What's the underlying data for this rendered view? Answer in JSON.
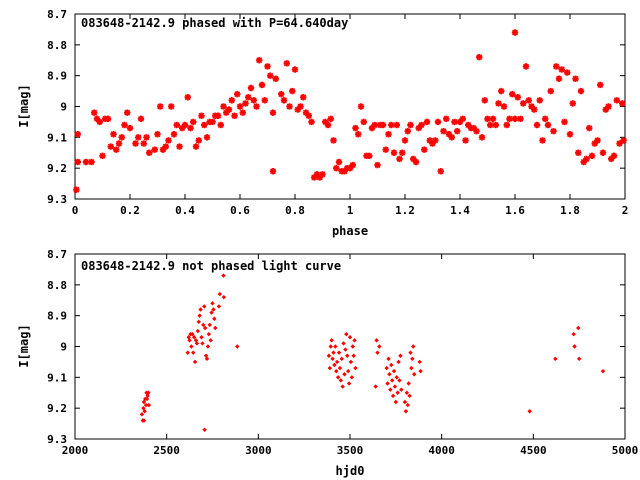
{
  "chart_data": [
    {
      "type": "scatter",
      "title": "083648-2142.9 phased with P=64.640day",
      "xlabel": "phase",
      "ylabel": "I[mag]",
      "xlim": [
        0,
        2
      ],
      "ylim": [
        8.7,
        9.3
      ],
      "y_inverted": true,
      "x_ticks": [
        "0",
        "0.2",
        "0.4",
        "0.6",
        "0.8",
        "1",
        "1.2",
        "1.4",
        "1.6",
        "1.8",
        "2"
      ],
      "y_ticks": [
        "8.7",
        "8.8",
        "8.9",
        "9",
        "9.1",
        "9.2",
        "9.3"
      ],
      "marker": "star",
      "color": "#ff0000",
      "points": [
        [
          0.005,
          9.27
        ],
        [
          0.01,
          9.18
        ],
        [
          0.01,
          9.09
        ],
        [
          0.04,
          9.18
        ],
        [
          0.06,
          9.18
        ],
        [
          0.07,
          9.02
        ],
        [
          0.08,
          9.04
        ],
        [
          0.09,
          9.05
        ],
        [
          0.1,
          9.16
        ],
        [
          0.11,
          9.04
        ],
        [
          0.12,
          9.04
        ],
        [
          0.13,
          9.13
        ],
        [
          0.14,
          9.09
        ],
        [
          0.15,
          9.14
        ],
        [
          0.16,
          9.12
        ],
        [
          0.17,
          9.1
        ],
        [
          0.18,
          9.06
        ],
        [
          0.19,
          9.02
        ],
        [
          0.2,
          9.07
        ],
        [
          0.22,
          9.12
        ],
        [
          0.23,
          9.1
        ],
        [
          0.24,
          9.04
        ],
        [
          0.25,
          9.12
        ],
        [
          0.26,
          9.1
        ],
        [
          0.27,
          9.15
        ],
        [
          0.29,
          9.14
        ],
        [
          0.3,
          9.09
        ],
        [
          0.31,
          9.0
        ],
        [
          0.32,
          9.14
        ],
        [
          0.33,
          9.13
        ],
        [
          0.34,
          9.11
        ],
        [
          0.35,
          9.0
        ],
        [
          0.36,
          9.09
        ],
        [
          0.37,
          9.06
        ],
        [
          0.38,
          9.13
        ],
        [
          0.39,
          9.07
        ],
        [
          0.4,
          9.06
        ],
        [
          0.41,
          8.97
        ],
        [
          0.42,
          9.07
        ],
        [
          0.43,
          9.05
        ],
        [
          0.44,
          9.13
        ],
        [
          0.45,
          9.11
        ],
        [
          0.46,
          9.03
        ],
        [
          0.47,
          9.06
        ],
        [
          0.48,
          9.1
        ],
        [
          0.49,
          9.05
        ],
        [
          0.5,
          9.05
        ],
        [
          0.51,
          9.03
        ],
        [
          0.52,
          9.03
        ],
        [
          0.53,
          9.06
        ],
        [
          0.54,
          9.0
        ],
        [
          0.55,
          9.02
        ],
        [
          0.56,
          9.01
        ],
        [
          0.57,
          8.98
        ],
        [
          0.58,
          9.03
        ],
        [
          0.59,
          8.96
        ],
        [
          0.6,
          9.0
        ],
        [
          0.61,
          9.02
        ],
        [
          0.62,
          8.99
        ],
        [
          0.63,
          8.97
        ],
        [
          0.64,
          8.94
        ],
        [
          0.65,
          8.98
        ],
        [
          0.66,
          9.0
        ],
        [
          0.67,
          8.85
        ],
        [
          0.68,
          8.93
        ],
        [
          0.69,
          8.98
        ],
        [
          0.7,
          8.87
        ],
        [
          0.71,
          8.9
        ],
        [
          0.72,
          9.02
        ],
        [
          0.72,
          9.21
        ],
        [
          0.73,
          8.91
        ],
        [
          0.75,
          8.96
        ],
        [
          0.76,
          8.98
        ],
        [
          0.77,
          8.86
        ],
        [
          0.78,
          9.0
        ],
        [
          0.79,
          8.95
        ],
        [
          0.8,
          8.88
        ],
        [
          0.81,
          9.01
        ],
        [
          0.82,
          9.0
        ],
        [
          0.83,
          8.97
        ],
        [
          0.84,
          9.02
        ],
        [
          0.85,
          9.03
        ],
        [
          0.86,
          9.05
        ],
        [
          0.87,
          9.23
        ],
        [
          0.88,
          9.22
        ],
        [
          0.89,
          9.23
        ],
        [
          0.9,
          9.22
        ],
        [
          0.91,
          9.05
        ],
        [
          0.92,
          9.06
        ],
        [
          0.93,
          9.04
        ],
        [
          0.94,
          9.11
        ],
        [
          0.95,
          9.2
        ],
        [
          0.96,
          9.18
        ],
        [
          0.97,
          9.21
        ],
        [
          0.98,
          9.21
        ],
        [
          0.99,
          9.2
        ],
        [
          1.0,
          9.2
        ],
        [
          1.01,
          9.19
        ],
        [
          1.02,
          9.07
        ],
        [
          1.03,
          9.09
        ],
        [
          1.04,
          9.0
        ],
        [
          1.05,
          9.05
        ],
        [
          1.06,
          9.16
        ],
        [
          1.07,
          9.16
        ],
        [
          1.08,
          9.07
        ],
        [
          1.09,
          9.06
        ],
        [
          1.1,
          9.19
        ],
        [
          1.11,
          9.06
        ],
        [
          1.12,
          9.06
        ],
        [
          1.13,
          9.14
        ],
        [
          1.14,
          9.09
        ],
        [
          1.15,
          9.06
        ],
        [
          1.16,
          9.15
        ],
        [
          1.17,
          9.06
        ],
        [
          1.18,
          9.17
        ],
        [
          1.19,
          9.15
        ],
        [
          1.2,
          9.11
        ],
        [
          1.21,
          9.08
        ],
        [
          1.22,
          9.06
        ],
        [
          1.23,
          9.17
        ],
        [
          1.24,
          9.18
        ],
        [
          1.25,
          9.07
        ],
        [
          1.26,
          9.06
        ],
        [
          1.27,
          9.14
        ],
        [
          1.28,
          9.05
        ],
        [
          1.29,
          9.11
        ],
        [
          1.3,
          9.12
        ],
        [
          1.31,
          9.11
        ],
        [
          1.32,
          9.05
        ],
        [
          1.33,
          9.21
        ],
        [
          1.34,
          9.08
        ],
        [
          1.35,
          9.04
        ],
        [
          1.36,
          9.09
        ],
        [
          1.37,
          9.1
        ],
        [
          1.38,
          9.05
        ],
        [
          1.39,
          9.08
        ],
        [
          1.4,
          9.05
        ],
        [
          1.41,
          9.04
        ],
        [
          1.42,
          9.11
        ],
        [
          1.43,
          9.06
        ],
        [
          1.44,
          9.07
        ],
        [
          1.45,
          9.07
        ],
        [
          1.46,
          9.08
        ],
        [
          1.47,
          8.84
        ],
        [
          1.48,
          9.1
        ],
        [
          1.49,
          8.98
        ],
        [
          1.5,
          9.04
        ],
        [
          1.51,
          9.06
        ],
        [
          1.52,
          9.04
        ],
        [
          1.53,
          9.06
        ],
        [
          1.54,
          8.99
        ],
        [
          1.55,
          8.95
        ],
        [
          1.56,
          9.0
        ],
        [
          1.57,
          9.06
        ],
        [
          1.58,
          9.04
        ],
        [
          1.59,
          8.96
        ],
        [
          1.6,
          8.76
        ],
        [
          1.6,
          9.04
        ],
        [
          1.61,
          8.97
        ],
        [
          1.62,
          9.04
        ],
        [
          1.63,
          8.99
        ],
        [
          1.64,
          8.87
        ],
        [
          1.65,
          8.98
        ],
        [
          1.66,
          9.0
        ],
        [
          1.67,
          9.01
        ],
        [
          1.68,
          9.06
        ],
        [
          1.69,
          8.98
        ],
        [
          1.7,
          9.11
        ],
        [
          1.71,
          9.04
        ],
        [
          1.72,
          9.06
        ],
        [
          1.73,
          8.95
        ],
        [
          1.74,
          9.08
        ],
        [
          1.75,
          8.87
        ],
        [
          1.76,
          8.91
        ],
        [
          1.77,
          8.88
        ],
        [
          1.78,
          9.05
        ],
        [
          1.79,
          8.89
        ],
        [
          1.8,
          9.09
        ],
        [
          1.81,
          8.99
        ],
        [
          1.82,
          8.91
        ],
        [
          1.83,
          9.15
        ],
        [
          1.84,
          8.95
        ],
        [
          1.85,
          9.18
        ],
        [
          1.86,
          9.17
        ],
        [
          1.87,
          9.07
        ],
        [
          1.88,
          9.16
        ],
        [
          1.89,
          9.12
        ],
        [
          1.9,
          9.11
        ],
        [
          1.91,
          8.93
        ],
        [
          1.92,
          9.15
        ],
        [
          1.93,
          9.01
        ],
        [
          1.94,
          9.0
        ],
        [
          1.95,
          9.17
        ],
        [
          1.96,
          9.16
        ],
        [
          1.97,
          8.98
        ],
        [
          1.98,
          9.12
        ],
        [
          1.99,
          8.99
        ],
        [
          1.995,
          9.11
        ]
      ]
    },
    {
      "type": "scatter",
      "title": "083648-2142.9 not phased light curve",
      "xlabel": "hjd0",
      "ylabel": "I[mag]",
      "xlim": [
        2000,
        5000
      ],
      "ylim": [
        8.7,
        9.3
      ],
      "y_inverted": true,
      "x_ticks": [
        "2000",
        "2500",
        "3000",
        "3500",
        "4000",
        "4500",
        "5000"
      ],
      "y_ticks": [
        "8.7",
        "8.8",
        "8.9",
        "9",
        "9.1",
        "9.2",
        "9.3"
      ],
      "marker": "diamond",
      "color": "#ff0000",
      "points": [
        [
          2365,
          9.22
        ],
        [
          2370,
          9.24
        ],
        [
          2373,
          9.2
        ],
        [
          2376,
          9.18
        ],
        [
          2380,
          9.21
        ],
        [
          2383,
          9.17
        ],
        [
          2387,
          9.19
        ],
        [
          2390,
          9.15
        ],
        [
          2393,
          9.17
        ],
        [
          2396,
          9.16
        ],
        [
          2400,
          9.15
        ],
        [
          2403,
          9.19
        ],
        [
          2376,
          9.24
        ],
        [
          2615,
          9.02
        ],
        [
          2620,
          8.97
        ],
        [
          2625,
          8.98
        ],
        [
          2630,
          8.96
        ],
        [
          2635,
          9.0
        ],
        [
          2640,
          8.96
        ],
        [
          2645,
          9.02
        ],
        [
          2650,
          8.97
        ],
        [
          2655,
          9.05
        ],
        [
          2660,
          8.98
        ],
        [
          2665,
          8.99
        ],
        [
          2670,
          8.95
        ],
        [
          2675,
          8.92
        ],
        [
          2680,
          8.9
        ],
        [
          2685,
          8.88
        ],
        [
          2690,
          8.97
        ],
        [
          2695,
          8.99
        ],
        [
          2700,
          8.93
        ],
        [
          2705,
          8.87
        ],
        [
          2707,
          9.27
        ],
        [
          2710,
          8.94
        ],
        [
          2715,
          9.03
        ],
        [
          2720,
          9.04
        ],
        [
          2725,
          9.0
        ],
        [
          2730,
          8.96
        ],
        [
          2735,
          8.93
        ],
        [
          2740,
          8.98
        ],
        [
          2745,
          8.89
        ],
        [
          2750,
          8.86
        ],
        [
          2755,
          8.88
        ],
        [
          2760,
          8.91
        ],
        [
          2765,
          8.94
        ],
        [
          2785,
          8.87
        ],
        [
          2790,
          8.83
        ],
        [
          2810,
          8.77
        ],
        [
          2812,
          8.84
        ],
        [
          2885,
          9.0
        ],
        [
          3385,
          9.03
        ],
        [
          3390,
          9.07
        ],
        [
          3395,
          9.0
        ],
        [
          3400,
          8.98
        ],
        [
          3405,
          9.04
        ],
        [
          3410,
          9.02
        ],
        [
          3415,
          9.06
        ],
        [
          3420,
          9.0
        ],
        [
          3425,
          9.08
        ],
        [
          3430,
          9.05
        ],
        [
          3435,
          9.1
        ],
        [
          3440,
          9.02
        ],
        [
          3445,
          9.07
        ],
        [
          3450,
          9.11
        ],
        [
          3455,
          9.04
        ],
        [
          3460,
          9.13
        ],
        [
          3465,
          8.99
        ],
        [
          3470,
          9.09
        ],
        [
          3475,
          9.01
        ],
        [
          3480,
          8.96
        ],
        [
          3485,
          9.03
        ],
        [
          3490,
          9.08
        ],
        [
          3495,
          9.12
        ],
        [
          3500,
          8.97
        ],
        [
          3505,
          9.05
        ],
        [
          3510,
          9.1
        ],
        [
          3515,
          9.0
        ],
        [
          3520,
          9.03
        ],
        [
          3525,
          8.98
        ],
        [
          3530,
          9.07
        ],
        [
          3640,
          9.13
        ],
        [
          3645,
          8.98
        ],
        [
          3650,
          9.02
        ],
        [
          3660,
          9.0
        ],
        [
          3700,
          9.07
        ],
        [
          3705,
          9.12
        ],
        [
          3710,
          9.04
        ],
        [
          3715,
          9.09
        ],
        [
          3720,
          9.14
        ],
        [
          3725,
          9.06
        ],
        [
          3730,
          9.11
        ],
        [
          3735,
          9.16
        ],
        [
          3740,
          9.08
        ],
        [
          3745,
          9.13
        ],
        [
          3750,
          9.18
        ],
        [
          3755,
          9.1
        ],
        [
          3760,
          9.15
        ],
        [
          3765,
          9.05
        ],
        [
          3770,
          9.11
        ],
        [
          3775,
          9.03
        ],
        [
          3780,
          9.14
        ],
        [
          3800,
          9.18
        ],
        [
          3805,
          9.21
        ],
        [
          3810,
          9.15
        ],
        [
          3815,
          9.19
        ],
        [
          3820,
          9.12
        ],
        [
          3825,
          9.16
        ],
        [
          3830,
          9.02
        ],
        [
          3835,
          9.07
        ],
        [
          3840,
          9.04
        ],
        [
          3845,
          9.0
        ],
        [
          3850,
          9.09
        ],
        [
          3880,
          9.05
        ],
        [
          3885,
          9.08
        ],
        [
          4480,
          9.21
        ],
        [
          4620,
          9.04
        ],
        [
          4720,
          8.96
        ],
        [
          4725,
          9.0
        ],
        [
          4745,
          8.94
        ],
        [
          4750,
          9.04
        ],
        [
          4880,
          9.08
        ]
      ]
    }
  ]
}
